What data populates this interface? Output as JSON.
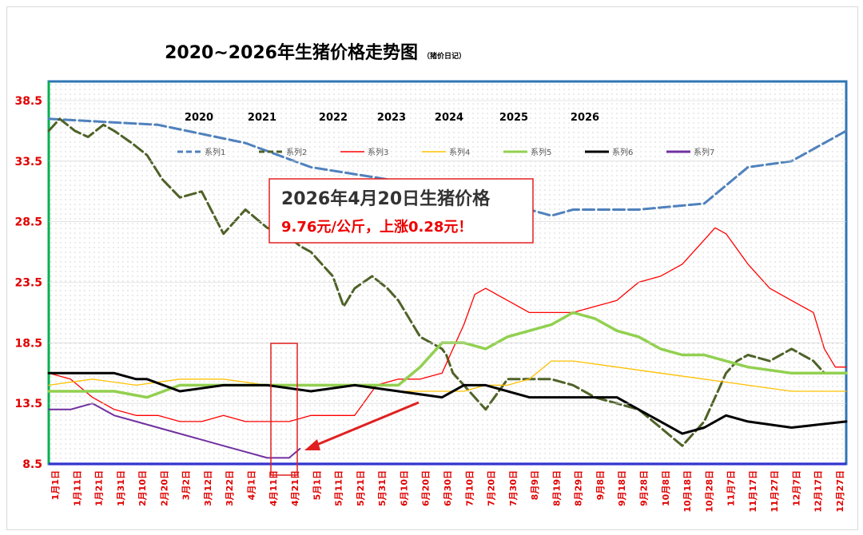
{
  "chart_data": {
    "type": "line",
    "title": "2020~2026年生猪价格走势图",
    "subtitle": "（猪价日记）",
    "y_ticks": [
      "38.5",
      "33.5",
      "28.5",
      "23.5",
      "18.5",
      "13.5",
      "8.5"
    ],
    "ylim": [
      8.5,
      38.5
    ],
    "x_tick_labels": [
      "1月1日",
      "1月11日",
      "1月21日",
      "1月31日",
      "2月10日",
      "2月20日",
      "3月2日",
      "3月12日",
      "3月22日",
      "4月1日",
      "4月11日",
      "4月21日",
      "5月1日",
      "5月11日",
      "5月21日",
      "5月31日",
      "6月10日",
      "6月20日",
      "6月30日",
      "7月10日",
      "7月20日",
      "7月30日",
      "8月9日",
      "8月19日",
      "8月29日",
      "9月8日",
      "9月18日",
      "9月28日",
      "10月8日",
      "10月18日",
      "10月28日",
      "11月7日",
      "11月17日",
      "11月27日",
      "12月7日",
      "12月17日",
      "12月27日"
    ],
    "year_labels": [
      {
        "text": "2020",
        "series": "系列1"
      },
      {
        "text": "2021",
        "series": "系列2"
      },
      {
        "text": "2022",
        "series": "系列3"
      },
      {
        "text": "2023",
        "series": "系列4"
      },
      {
        "text": "2024",
        "series": "系列5"
      },
      {
        "text": "2025",
        "series": "系列6"
      },
      {
        "text": "2026",
        "series": "系列7"
      }
    ],
    "legend_position": "top",
    "grid": "dotted",
    "series": [
      {
        "name": "系列1",
        "color": "#4f81bd",
        "style": "dashed",
        "x": [
          0,
          50,
          90,
          120,
          155,
          175,
          200,
          220,
          230,
          240,
          270,
          300,
          320,
          340,
          365
        ],
        "y": [
          37.0,
          36.5,
          35.0,
          33.0,
          32.0,
          31.5,
          30.5,
          29.5,
          29.0,
          29.5,
          29.5,
          30.0,
          33.0,
          33.5,
          36.0
        ]
      },
      {
        "name": "系列2",
        "color": "#4f6228",
        "style": "dashed",
        "x": [
          0,
          5,
          12,
          18,
          25,
          30,
          38,
          45,
          52,
          60,
          70,
          80,
          90,
          100,
          108,
          115,
          120,
          125,
          130,
          135,
          140,
          148,
          155,
          160,
          165,
          170,
          175,
          180,
          182,
          185,
          190,
          200,
          210,
          220,
          230,
          240,
          250,
          260,
          270,
          280,
          290,
          295,
          300,
          305,
          310,
          315,
          320,
          330,
          340,
          350,
          355,
          365
        ],
        "y": [
          36.0,
          37.0,
          36.0,
          35.5,
          36.5,
          36.0,
          35.0,
          34.0,
          32.0,
          30.5,
          31.0,
          27.5,
          29.5,
          28.0,
          27.5,
          26.5,
          26.0,
          25.0,
          24.0,
          21.5,
          23.0,
          24.0,
          23.0,
          22.0,
          20.5,
          19.0,
          18.5,
          18.0,
          17.5,
          16.0,
          15.0,
          13.0,
          15.5,
          15.5,
          15.5,
          15.0,
          14.0,
          13.5,
          13.0,
          11.5,
          10.0,
          11.0,
          12.0,
          14.0,
          16.0,
          17.0,
          17.5,
          17.0,
          18.0,
          17.0,
          16.0,
          16.0
        ]
      },
      {
        "name": "系列3",
        "color": "#ff0000",
        "style": "solid",
        "x": [
          0,
          10,
          20,
          30,
          40,
          50,
          60,
          70,
          80,
          90,
          100,
          110,
          120,
          130,
          140,
          146,
          150,
          160,
          170,
          180,
          185,
          190,
          195,
          200,
          210,
          220,
          230,
          240,
          250,
          260,
          270,
          280,
          290,
          300,
          305,
          310,
          320,
          330,
          340,
          350,
          355,
          360,
          365
        ],
        "y": [
          16.0,
          15.5,
          14.0,
          13.0,
          12.5,
          12.5,
          12.0,
          12.0,
          12.5,
          12.0,
          12.0,
          12.0,
          12.5,
          12.5,
          12.5,
          14.0,
          15.0,
          15.5,
          15.5,
          16.0,
          18.0,
          20.0,
          22.5,
          23.0,
          22.0,
          21.0,
          21.0,
          21.0,
          21.5,
          22.0,
          23.5,
          24.0,
          25.0,
          27.0,
          28.0,
          27.5,
          25.0,
          23.0,
          22.0,
          21.0,
          18.0,
          16.5,
          16.5
        ]
      },
      {
        "name": "系列4",
        "color": "#ffc000",
        "style": "solid",
        "x": [
          0,
          20,
          40,
          60,
          80,
          100,
          120,
          140,
          160,
          180,
          190,
          200,
          210,
          220,
          230,
          240,
          260,
          280,
          300,
          320,
          340,
          365
        ],
        "y": [
          15.0,
          15.5,
          15.0,
          15.5,
          15.5,
          15.0,
          15.0,
          15.0,
          14.5,
          14.5,
          14.5,
          15.0,
          15.0,
          15.5,
          17.0,
          17.0,
          16.5,
          16.0,
          15.5,
          15.0,
          14.5,
          14.5
        ]
      },
      {
        "name": "系列5",
        "color": "#92d050",
        "style": "solid",
        "x": [
          0,
          15,
          30,
          45,
          60,
          80,
          100,
          120,
          140,
          160,
          170,
          180,
          190,
          200,
          210,
          220,
          230,
          240,
          250,
          260,
          270,
          280,
          290,
          300,
          320,
          340,
          365
        ],
        "y": [
          14.5,
          14.5,
          14.5,
          14.0,
          15.0,
          15.0,
          15.0,
          15.0,
          15.0,
          15.0,
          16.5,
          18.5,
          18.5,
          18.0,
          19.0,
          19.5,
          20.0,
          21.0,
          20.5,
          19.5,
          19.0,
          18.0,
          17.5,
          17.5,
          16.5,
          16.0,
          16.0
        ]
      },
      {
        "name": "系列6",
        "color": "#000000",
        "style": "solid",
        "x": [
          0,
          15,
          30,
          40,
          45,
          60,
          80,
          100,
          120,
          140,
          160,
          180,
          190,
          200,
          220,
          240,
          260,
          270,
          280,
          290,
          300,
          310,
          320,
          340,
          365
        ],
        "y": [
          16.0,
          16.0,
          16.0,
          15.5,
          15.5,
          14.5,
          15.0,
          15.0,
          14.5,
          15.0,
          14.5,
          14.0,
          15.0,
          15.0,
          14.0,
          14.0,
          14.0,
          13.0,
          12.0,
          11.0,
          11.5,
          12.5,
          12.0,
          11.5,
          12.0
        ]
      },
      {
        "name": "系列7",
        "color": "#7030a0",
        "style": "solid",
        "x": [
          0,
          10,
          20,
          30,
          40,
          50,
          60,
          70,
          80,
          90,
          100,
          105,
          110,
          115
        ],
        "y": [
          13.0,
          13.0,
          13.5,
          12.5,
          12.0,
          11.5,
          11.0,
          10.5,
          10.0,
          9.5,
          9.0,
          9.0,
          9.0,
          9.76
        ]
      }
    ],
    "annotation": {
      "line1": "2026年4月20日生猪价格",
      "line2": "9.76元/公斤，上涨0.28元！"
    }
  }
}
